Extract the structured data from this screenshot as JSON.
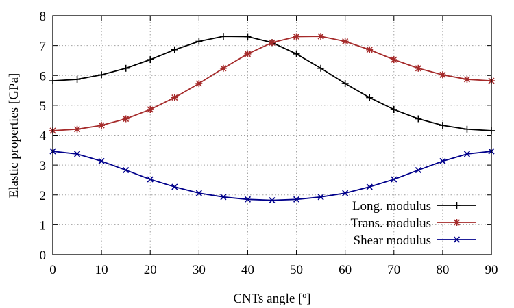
{
  "chart_data": {
    "type": "line",
    "title": "",
    "xlabel": "CNTs angle [º]",
    "ylabel": "Elastic properties [GPa]",
    "xlim": [
      0,
      90
    ],
    "ylim": [
      0,
      8
    ],
    "xticks": [
      0,
      10,
      20,
      30,
      40,
      50,
      60,
      70,
      80,
      90
    ],
    "yticks": [
      0,
      1,
      2,
      3,
      4,
      5,
      6,
      7,
      8
    ],
    "grid": true,
    "legend_position": "bottom-right",
    "x": [
      0,
      5,
      10,
      15,
      20,
      25,
      30,
      35,
      40,
      45,
      50,
      55,
      60,
      65,
      70,
      75,
      80,
      85,
      90
    ],
    "series": [
      {
        "name": "Long. modulus",
        "color": "#000000",
        "marker": "plus",
        "values": [
          5.82,
          5.87,
          6.02,
          6.24,
          6.53,
          6.86,
          7.14,
          7.31,
          7.3,
          7.1,
          6.72,
          6.24,
          5.73,
          5.26,
          4.86,
          4.55,
          4.33,
          4.2,
          4.15
        ]
      },
      {
        "name": "Trans. modulus",
        "color": "#a52a2a",
        "marker": "star",
        "values": [
          4.15,
          4.2,
          4.33,
          4.55,
          4.86,
          5.26,
          5.73,
          6.24,
          6.72,
          7.1,
          7.3,
          7.31,
          7.14,
          6.86,
          6.53,
          6.24,
          6.02,
          5.87,
          5.82
        ]
      },
      {
        "name": "Shear modulus",
        "color": "#00008b",
        "marker": "cross",
        "values": [
          3.46,
          3.37,
          3.13,
          2.83,
          2.52,
          2.27,
          2.06,
          1.93,
          1.85,
          1.82,
          1.85,
          1.93,
          2.06,
          2.27,
          2.52,
          2.83,
          3.13,
          3.37,
          3.46
        ]
      }
    ]
  }
}
